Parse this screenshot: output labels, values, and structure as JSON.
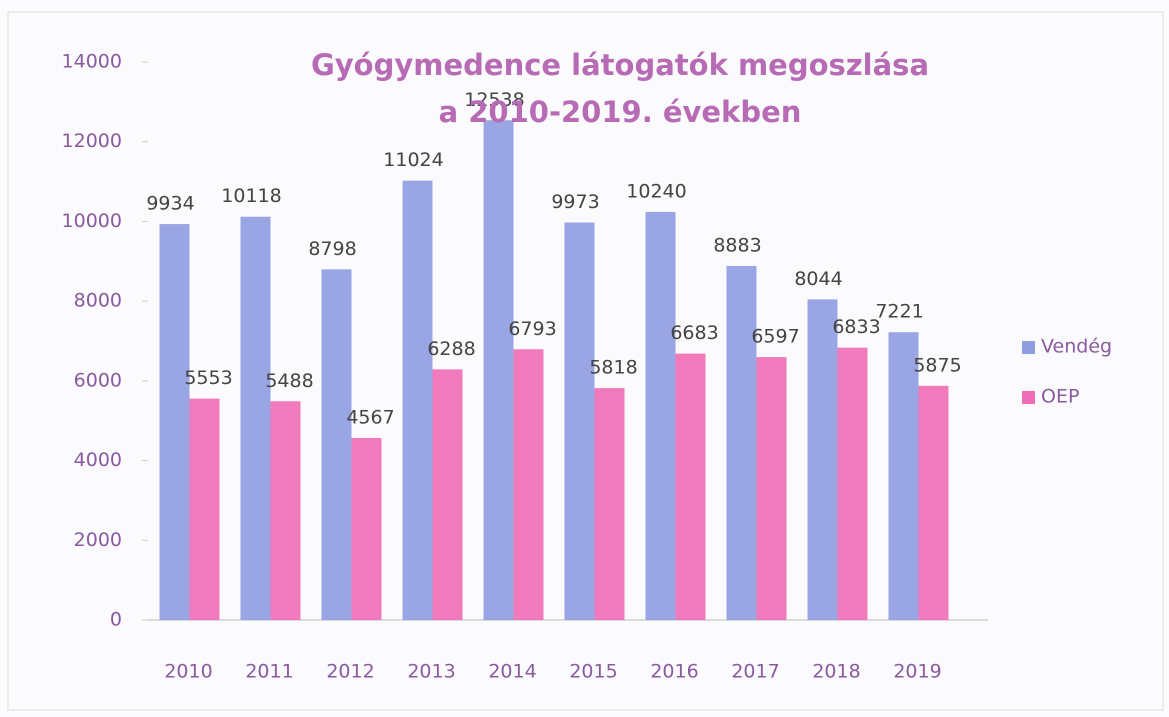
{
  "chart_data": {
    "type": "bar",
    "title": "Gyógymedence látogatók megoszlása a 2010-2019. években",
    "categories": [
      "2010",
      "2011",
      "2012",
      "2013",
      "2014",
      "2015",
      "2016",
      "2017",
      "2018",
      "2019"
    ],
    "series": [
      {
        "name": "Vendég",
        "color": "#8f9ce0",
        "values": [
          9934,
          10118,
          8798,
          11024,
          12538,
          9973,
          10240,
          8883,
          8044,
          7221
        ]
      },
      {
        "name": "OEP",
        "color": "#f06cb6",
        "values": [
          5553,
          5488,
          4567,
          6288,
          6793,
          5818,
          6683,
          6597,
          6833,
          5875
        ]
      }
    ],
    "ylim": [
      0,
      14000
    ],
    "yticks": [
      0,
      2000,
      4000,
      6000,
      8000,
      10000,
      12000,
      14000
    ],
    "legend": "right"
  }
}
